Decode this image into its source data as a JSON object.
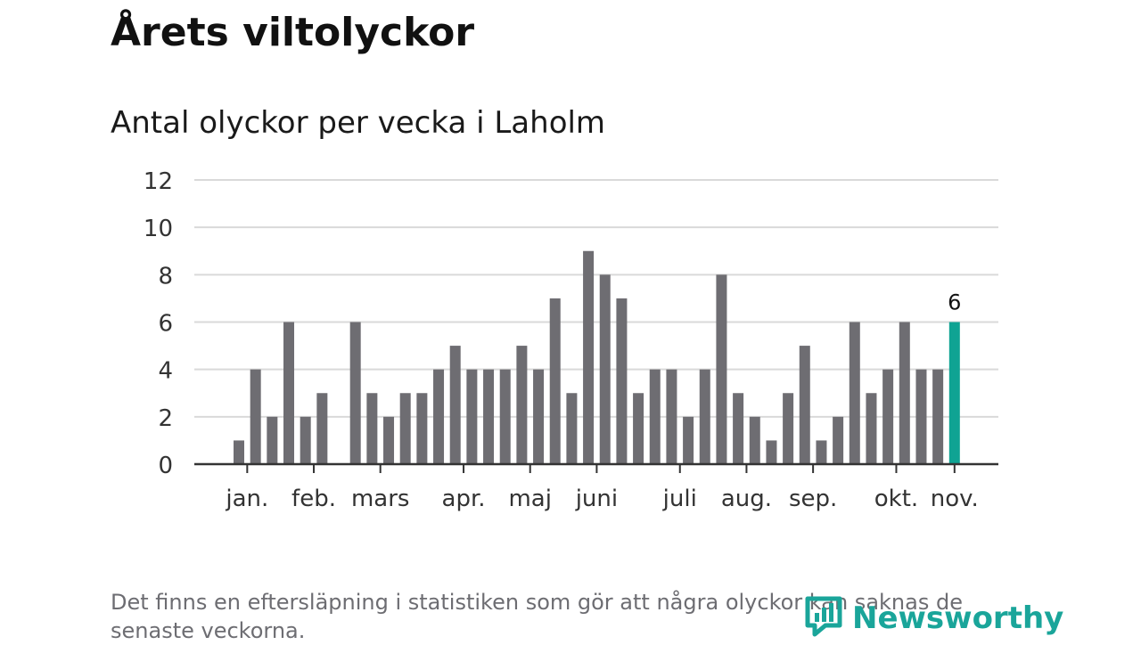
{
  "title": "Årets viltolyckor",
  "subtitle": "Antal olyckor per vecka i Laholm",
  "footnote": "Det finns en eftersläpning i statistiken som gör att några olyckor kan saknas de senaste veckorna.",
  "brand": {
    "name": "Newsworthy",
    "icon": "newsworthy-logo-icon"
  },
  "colors": {
    "bar": "#6e6d72",
    "highlight": "#0fa393",
    "grid": "#d9d9d9",
    "axis": "#333333",
    "brand": "#1aa59a"
  },
  "chart_data": {
    "type": "bar",
    "title": "Antal olyckor per vecka i Laholm",
    "xlabel": "",
    "ylabel": "",
    "ylim": [
      0,
      12
    ],
    "yticks": [
      0,
      2,
      4,
      6,
      8,
      10,
      12
    ],
    "grid": true,
    "x": [
      1,
      2,
      3,
      4,
      5,
      6,
      7,
      8,
      9,
      10,
      11,
      12,
      13,
      14,
      15,
      16,
      17,
      18,
      19,
      20,
      21,
      22,
      23,
      24,
      25,
      26,
      27,
      28,
      29,
      30,
      31,
      32,
      33,
      34,
      35,
      36,
      37,
      38,
      39,
      40,
      41,
      42,
      43,
      44
    ],
    "values": [
      1,
      4,
      2,
      6,
      2,
      3,
      0,
      6,
      3,
      2,
      3,
      3,
      4,
      5,
      4,
      4,
      4,
      5,
      4,
      7,
      3,
      9,
      8,
      7,
      3,
      4,
      4,
      2,
      4,
      8,
      3,
      2,
      1,
      3,
      5,
      1,
      2,
      6,
      3,
      4,
      6,
      4,
      4,
      6
    ],
    "highlight_index": 43,
    "highlight_label": "6",
    "month_ticks": [
      {
        "label": "jan.",
        "week": 1.5
      },
      {
        "label": "feb.",
        "week": 5.5
      },
      {
        "label": "mars",
        "week": 9.5
      },
      {
        "label": "apr.",
        "week": 14.5
      },
      {
        "label": "maj",
        "week": 18.5
      },
      {
        "label": "juni",
        "week": 22.5
      },
      {
        "label": "juli",
        "week": 27.5
      },
      {
        "label": "aug.",
        "week": 31.5
      },
      {
        "label": "sep.",
        "week": 35.5
      },
      {
        "label": "okt.",
        "week": 40.5
      },
      {
        "label": "nov.",
        "week": 44
      }
    ]
  }
}
